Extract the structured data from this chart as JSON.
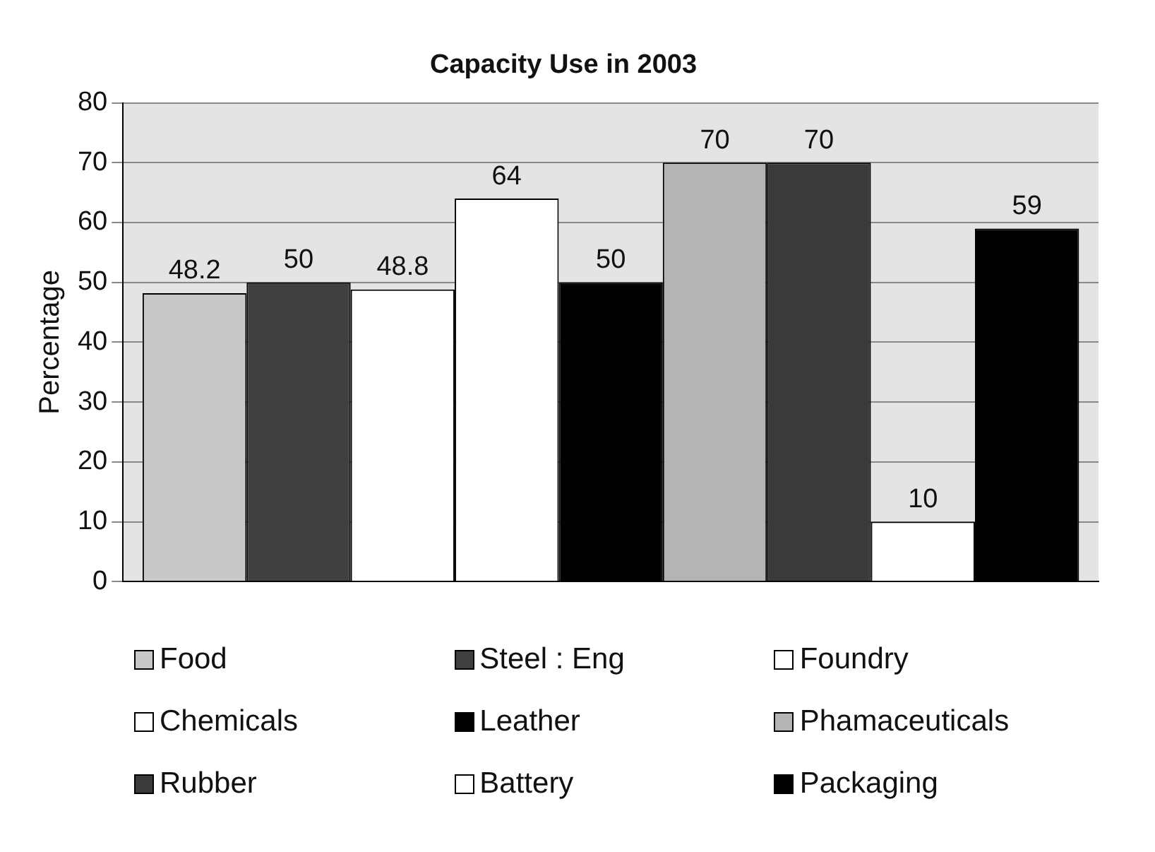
{
  "chart_data": {
    "type": "bar",
    "title": "Capacity Use in 2003",
    "ylabel": "Percentage",
    "categories": [
      null
    ],
    "series": [
      {
        "name": "Food",
        "color": "#c8c8c8",
        "values": [
          48.2
        ]
      },
      {
        "name": "Steel : Eng",
        "color": "#404040",
        "values": [
          50
        ]
      },
      {
        "name": "Foundry",
        "color": "#ffffff",
        "values": [
          48.8
        ]
      },
      {
        "name": "Chemicals",
        "color": "#ffffff",
        "values": [
          64
        ]
      },
      {
        "name": "Leather",
        "color": "#000000",
        "values": [
          50
        ]
      },
      {
        "name": "Phamaceuticals",
        "color": "#b4b4b4",
        "values": [
          70
        ]
      },
      {
        "name": "Rubber",
        "color": "#3a3a3a",
        "values": [
          70
        ]
      },
      {
        "name": "Battery",
        "color": "#ffffff",
        "values": [
          10
        ]
      },
      {
        "name": "Packaging",
        "color": "#000000",
        "values": [
          59
        ]
      }
    ],
    "ylim": [
      0,
      80
    ],
    "yticks": [
      0,
      10,
      20,
      30,
      40,
      50,
      60,
      70,
      80
    ],
    "grid": "y",
    "legend": "bottom",
    "data_labels": true
  }
}
